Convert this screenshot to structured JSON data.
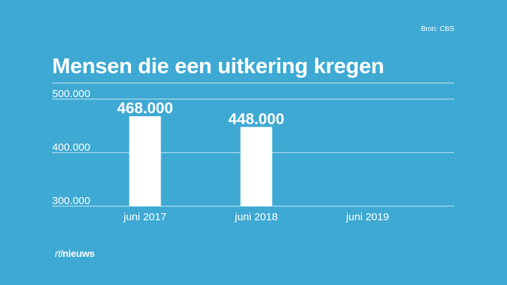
{
  "source": "Bron: CBS",
  "logo": {
    "part1": "rtl",
    "part2": "nieuws"
  },
  "colors": {
    "background": "#3ea9d3",
    "bar": "#ffffff",
    "text": "#ffffff",
    "gridline": "#cfeaf5"
  },
  "chart_data": {
    "type": "bar",
    "title": "Mensen die een uitkering kregen",
    "categories": [
      "juni 2017",
      "juni 2018",
      "juni 2019"
    ],
    "values": [
      468000,
      448000,
      null
    ],
    "data_labels": [
      "468.000",
      "448.000",
      ""
    ],
    "yticks": [
      300000,
      400000,
      500000
    ],
    "ytick_labels": [
      "300.000",
      "400.000",
      "500.000"
    ],
    "ylim": [
      300000,
      530000
    ],
    "grid": true,
    "xlabel": "",
    "ylabel": ""
  }
}
